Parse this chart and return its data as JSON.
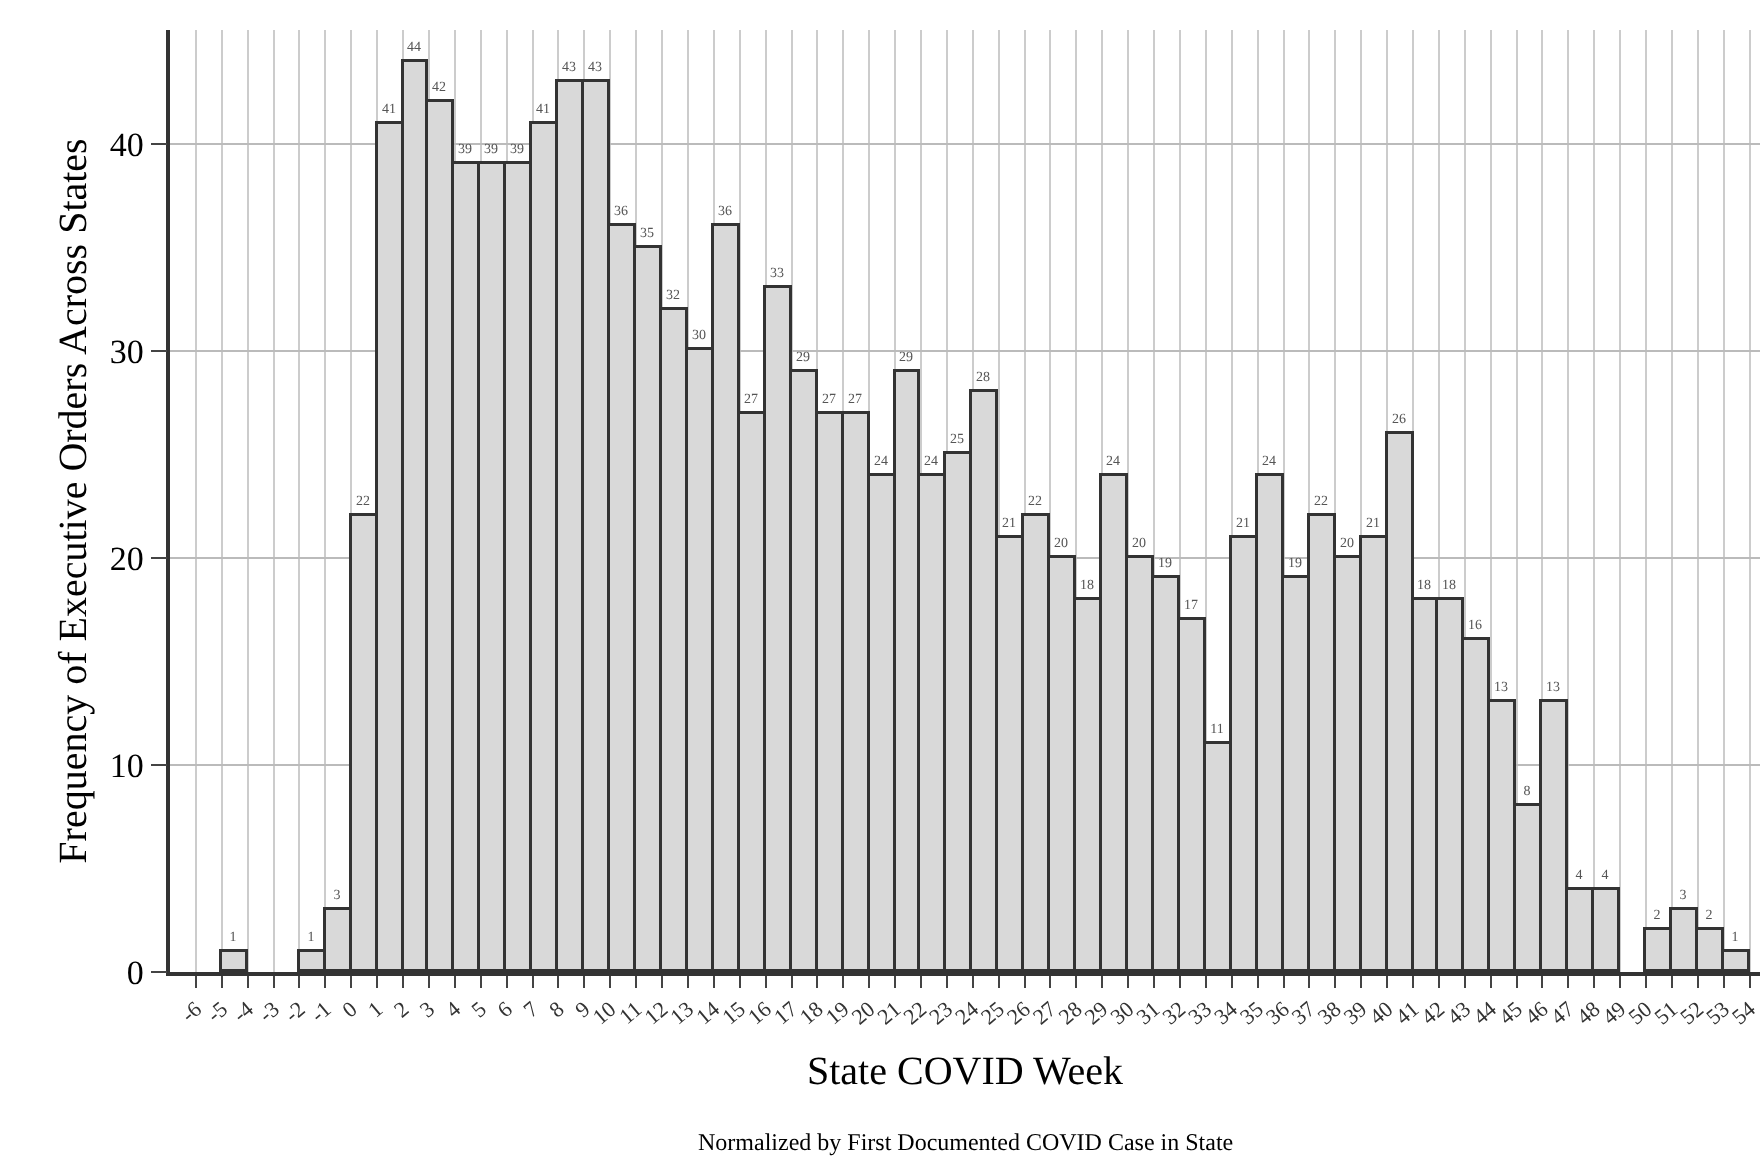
{
  "chart_data": {
    "type": "histogram",
    "xlabel": "State COVID Week",
    "ylabel": "Frequency of Executive Orders Across States",
    "annotations": [
      "Normalized by First Documented COVID Case in State"
    ],
    "bins": [
      -6,
      -5,
      -4,
      -3,
      -2,
      -1,
      0,
      1,
      2,
      3,
      4,
      5,
      6,
      7,
      8,
      9,
      10,
      11,
      12,
      13,
      14,
      15,
      16,
      17,
      18,
      19,
      20,
      21,
      22,
      23,
      24,
      25,
      26,
      27,
      28,
      29,
      30,
      31,
      32,
      33,
      34,
      35,
      36,
      37,
      38,
      39,
      40,
      41,
      42,
      43,
      44,
      45,
      46,
      47,
      48,
      49,
      50,
      51,
      52,
      53,
      54
    ],
    "values": [
      0,
      1,
      0,
      0,
      1,
      3,
      22,
      41,
      44,
      42,
      39,
      39,
      39,
      41,
      43,
      43,
      36,
      35,
      32,
      30,
      36,
      27,
      33,
      29,
      27,
      27,
      24,
      29,
      24,
      25,
      28,
      21,
      22,
      20,
      18,
      24,
      20,
      19,
      17,
      11,
      21,
      24,
      19,
      22,
      20,
      21,
      26,
      18,
      18,
      16,
      13,
      8,
      13,
      4,
      4,
      0,
      2,
      3,
      2,
      1
    ],
    "value_labels": [
      null,
      "1",
      null,
      null,
      "1",
      "3",
      "22",
      "41",
      "44",
      "42",
      "39",
      "39",
      "39",
      "41",
      "43",
      "43",
      "36",
      "35",
      "32",
      "30",
      "36",
      "27",
      "33",
      "29",
      "27",
      "27",
      "24",
      "29",
      "24",
      "25",
      "28",
      "21",
      "22",
      "20",
      "18",
      "24",
      "20",
      "19",
      "17",
      "11",
      "21",
      "24",
      "19",
      "22",
      "20",
      "21",
      "26",
      "18",
      "18",
      "16",
      "13",
      "8",
      "13",
      "4",
      "4",
      null,
      "2",
      "3",
      "2",
      "1"
    ],
    "color": "#d9d9d9",
    "xlim": [
      -7,
      54.4
    ],
    "ylim": [
      0,
      45.5
    ],
    "xticks": [
      -6,
      -5,
      -4,
      -3,
      -2,
      -1,
      0,
      1,
      2,
      3,
      4,
      5,
      6,
      7,
      8,
      9,
      10,
      11,
      12,
      13,
      14,
      15,
      16,
      17,
      18,
      19,
      20,
      21,
      22,
      23,
      24,
      25,
      26,
      27,
      28,
      29,
      30,
      31,
      32,
      33,
      34,
      35,
      36,
      37,
      38,
      39,
      40,
      41,
      42,
      43,
      44,
      45,
      46,
      47,
      48,
      49,
      50,
      51,
      52,
      53,
      54
    ],
    "yticks": [
      0,
      10,
      20,
      30,
      40
    ],
    "grid": true
  }
}
